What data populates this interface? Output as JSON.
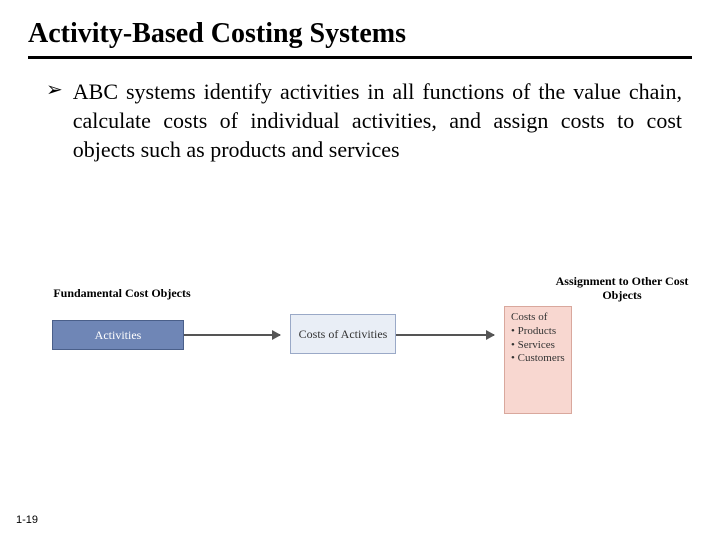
{
  "title": "Activity-Based Costing Systems",
  "bullet_mark": "➢",
  "bullet_text": "ABC systems identify activities in all functions of the value chain, calculate costs of individual activities, and assign costs to cost objects such as products and services",
  "diagram": {
    "left_heading": "Fundamental Cost Objects",
    "right_heading": "Assignment to Other Cost Objects",
    "box1_label": "Activities",
    "box2_label": "Costs of Activities",
    "box3_label": "Costs of\n• Products\n• Services\n• Customers",
    "colors": {
      "box1_bg": "#6f86b6",
      "box1_border": "#4a5f8a",
      "box1_text": "#ffffff",
      "box2_bg": "#e9eef6",
      "box2_border": "#9aa9c7",
      "box3_bg": "#f8d7d0",
      "box3_border": "#d9a89d",
      "arrow": "#555555"
    }
  },
  "page_number": "1-19"
}
